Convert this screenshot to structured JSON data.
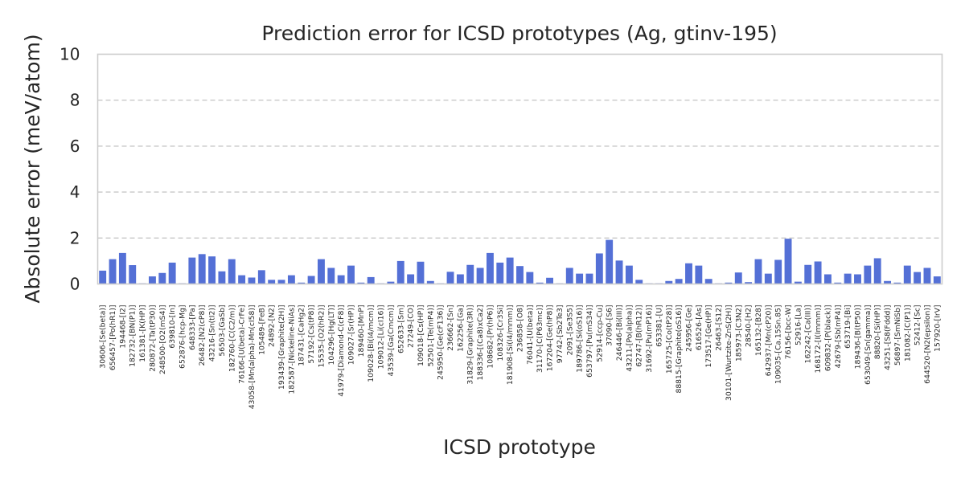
{
  "chart_data": {
    "type": "bar",
    "title": "Prediction error for ICSD prototypes (Ag, gtinv-195)",
    "xlabel": "ICSD prototype",
    "ylabel": "Absolute error (meV/atom)",
    "ylim": [
      0,
      10
    ],
    "yticks": [
      0,
      2,
      4,
      6,
      8,
      10
    ],
    "grid": true,
    "colors": {
      "bar": "#5470d6",
      "grid": "#c8c8c8",
      "frame": "#cccccc",
      "text": "#262626"
    },
    "categories": [
      "30606-[Se(beta)]",
      "656457-[Po(hR1)]",
      "194468-[I2]",
      "182732-[BN(P1)]",
      "161381-[K(HP)]",
      "280872-[Ta(tP30)]",
      "248500-[O2(mS4)]",
      "639810-[In]",
      "652876-[hcp-Mg]",
      "648333-[Pa]",
      "26482-[N2(cP8)]",
      "43216-[Sn(tI2)]",
      "56503-[GaSb]",
      "182760-[C(C2/m)]",
      "76166-[U(beta)-CrFe]",
      "43058-[Mn(alpha)-Mn(cI58)]",
      "105489-[FeB]",
      "24892-[N2]",
      "193439-[Graphite(2H)]",
      "182587-[Nickeline-NiAs]",
      "187431-[CaHg2]",
      "57192-[Cs(tP8)]",
      "15535-[O2(hR2)]",
      "104296-[Hg(LT)]",
      "41979-[Diamond-C(cF8)]",
      "109027-[Sr(HP)]",
      "189460-[MnP]",
      "109028-[Bi(I4/mcm)]",
      "109012-[Li(cI16)]",
      "43539-[Ga(Cmcm)]",
      "652633-[Sm]",
      "27249-[CO]",
      "109018-[Cs(HP)]",
      "52501-[Te(mP4)]",
      "245950-[Ge(cF136)]",
      "236662-[Sn]",
      "162256-[Ga]",
      "31829-[Graphite(3R)]",
      "188336-[(Ca8)xCa2]",
      "108682-[Pr(hP6)]",
      "108326-[Cr3Si]",
      "181908-[Si(I4/mmm)]",
      "236858-[O8]",
      "76041-[U(beta)]",
      "31170-[C(P63mc)]",
      "167204-[Ge(hP8)]",
      "97742-[Sb2Te3]",
      "2091-[Se3S5]",
      "189786-[Si(oS16)]",
      "653797-[Pu(mS34)]",
      "52914-[ccp-Cu]",
      "37090-[S6]",
      "246446-[Bi(III)]",
      "43211-[Po(alpha)]",
      "62747-[B(hR12)]",
      "31692-[Pu(mP16)]",
      "653381-[U]",
      "165725-[Co(tP28)]",
      "88815-[Graphite(oS16)]",
      "245956-[Ge]",
      "616526-[As]",
      "173517-[Ge(HP)]",
      "26463-[S12]",
      "30101-[Wurtzite-ZnS(2H)]",
      "185973-[C3N2]",
      "28540-[H2]",
      "165132-[B28]",
      "642937-[Mn(cP20)]",
      "109035-[Ca.15Sn.85]",
      "76156-[bcc-W]",
      "52916-[La]",
      "162242-[Ca(III)]",
      "168172-[I(Immm)]",
      "609832-[P(black)]",
      "42679-[Sb(mP4)]",
      "653719-[Bi]",
      "189436-[B(tP50)]",
      "653049-[Sn(gamma)]",
      "88820-[Si(HP)]",
      "43251-[S8(Fddd)]",
      "56897-[SmNiSb]",
      "181082-[C(P1)]",
      "52412-[Sc]",
      "644520-[N2(epsilon)]",
      "157920-[IrV]"
    ],
    "values": [
      0.58,
      1.08,
      1.35,
      0.82,
      0.03,
      0.33,
      0.48,
      0.93,
      0.03,
      1.15,
      1.3,
      1.2,
      0.55,
      1.08,
      0.38,
      0.28,
      0.6,
      0.18,
      0.18,
      0.38,
      0.06,
      0.35,
      1.08,
      0.7,
      0.38,
      0.8,
      0.06,
      0.3,
      0.03,
      0.1,
      1.0,
      0.42,
      0.97,
      0.13,
      0.03,
      0.53,
      0.42,
      0.83,
      0.7,
      1.35,
      0.93,
      1.15,
      0.78,
      0.52,
      0.06,
      0.27,
      0.03,
      0.7,
      0.45,
      0.45,
      1.33,
      1.92,
      1.02,
      0.8,
      0.18,
      0.03,
      0.03,
      0.13,
      0.22,
      0.9,
      0.8,
      0.22,
      0.03,
      0.06,
      0.5,
      0.08,
      1.08,
      0.45,
      1.05,
      1.97,
      0.1,
      0.83,
      0.98,
      0.42,
      0.06,
      0.45,
      0.42,
      0.8,
      1.12,
      0.13,
      0.06,
      0.8,
      0.52,
      0.7,
      0.33
    ]
  }
}
